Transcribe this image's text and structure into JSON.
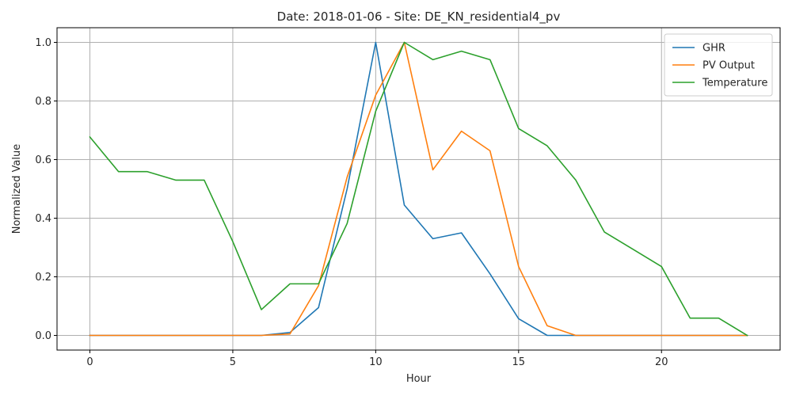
{
  "chart_data": {
    "type": "line",
    "title": "Date: 2018-01-06 - Site: DE_KN_residential4_pv",
    "xlabel": "Hour",
    "ylabel": "Normalized Value",
    "x": [
      0,
      1,
      2,
      3,
      4,
      5,
      6,
      7,
      8,
      9,
      10,
      11,
      12,
      13,
      14,
      15,
      16,
      17,
      18,
      19,
      20,
      21,
      22,
      23
    ],
    "xlim": [
      -1.15,
      24.15
    ],
    "ylim": [
      -0.05,
      1.05
    ],
    "xticks": [
      0,
      5,
      10,
      15,
      20
    ],
    "yticks": [
      0.0,
      0.2,
      0.4,
      0.6,
      0.8,
      1.0
    ],
    "xtick_labels": [
      "0",
      "5",
      "10",
      "15",
      "20"
    ],
    "ytick_labels": [
      "0.0",
      "0.2",
      "0.4",
      "0.6",
      "0.8",
      "1.0"
    ],
    "grid": true,
    "legend_position": "top-right",
    "series": [
      {
        "name": "GHR",
        "color": "#1f77b4",
        "values": [
          0,
          0,
          0,
          0,
          0,
          0,
          0,
          0.01,
          0.095,
          0.5,
          1.0,
          0.445,
          0.33,
          0.35,
          0.21,
          0.057,
          0,
          0,
          0,
          0,
          0,
          0,
          0,
          0
        ]
      },
      {
        "name": "PV Output",
        "color": "#ff7f0e",
        "values": [
          0,
          0,
          0,
          0,
          0,
          0,
          0,
          0.005,
          0.17,
          0.54,
          0.82,
          1.0,
          0.565,
          0.697,
          0.63,
          0.235,
          0.033,
          0,
          0,
          0,
          0,
          0,
          0,
          0
        ]
      },
      {
        "name": "Temperature",
        "color": "#2ca02c",
        "values": [
          0.677,
          0.559,
          0.559,
          0.53,
          0.53,
          0.32,
          0.088,
          0.176,
          0.176,
          0.382,
          0.765,
          1.0,
          0.941,
          0.97,
          0.941,
          0.706,
          0.647,
          0.53,
          0.353,
          0.294,
          0.235,
          0.059,
          0.059,
          0
        ]
      }
    ]
  }
}
